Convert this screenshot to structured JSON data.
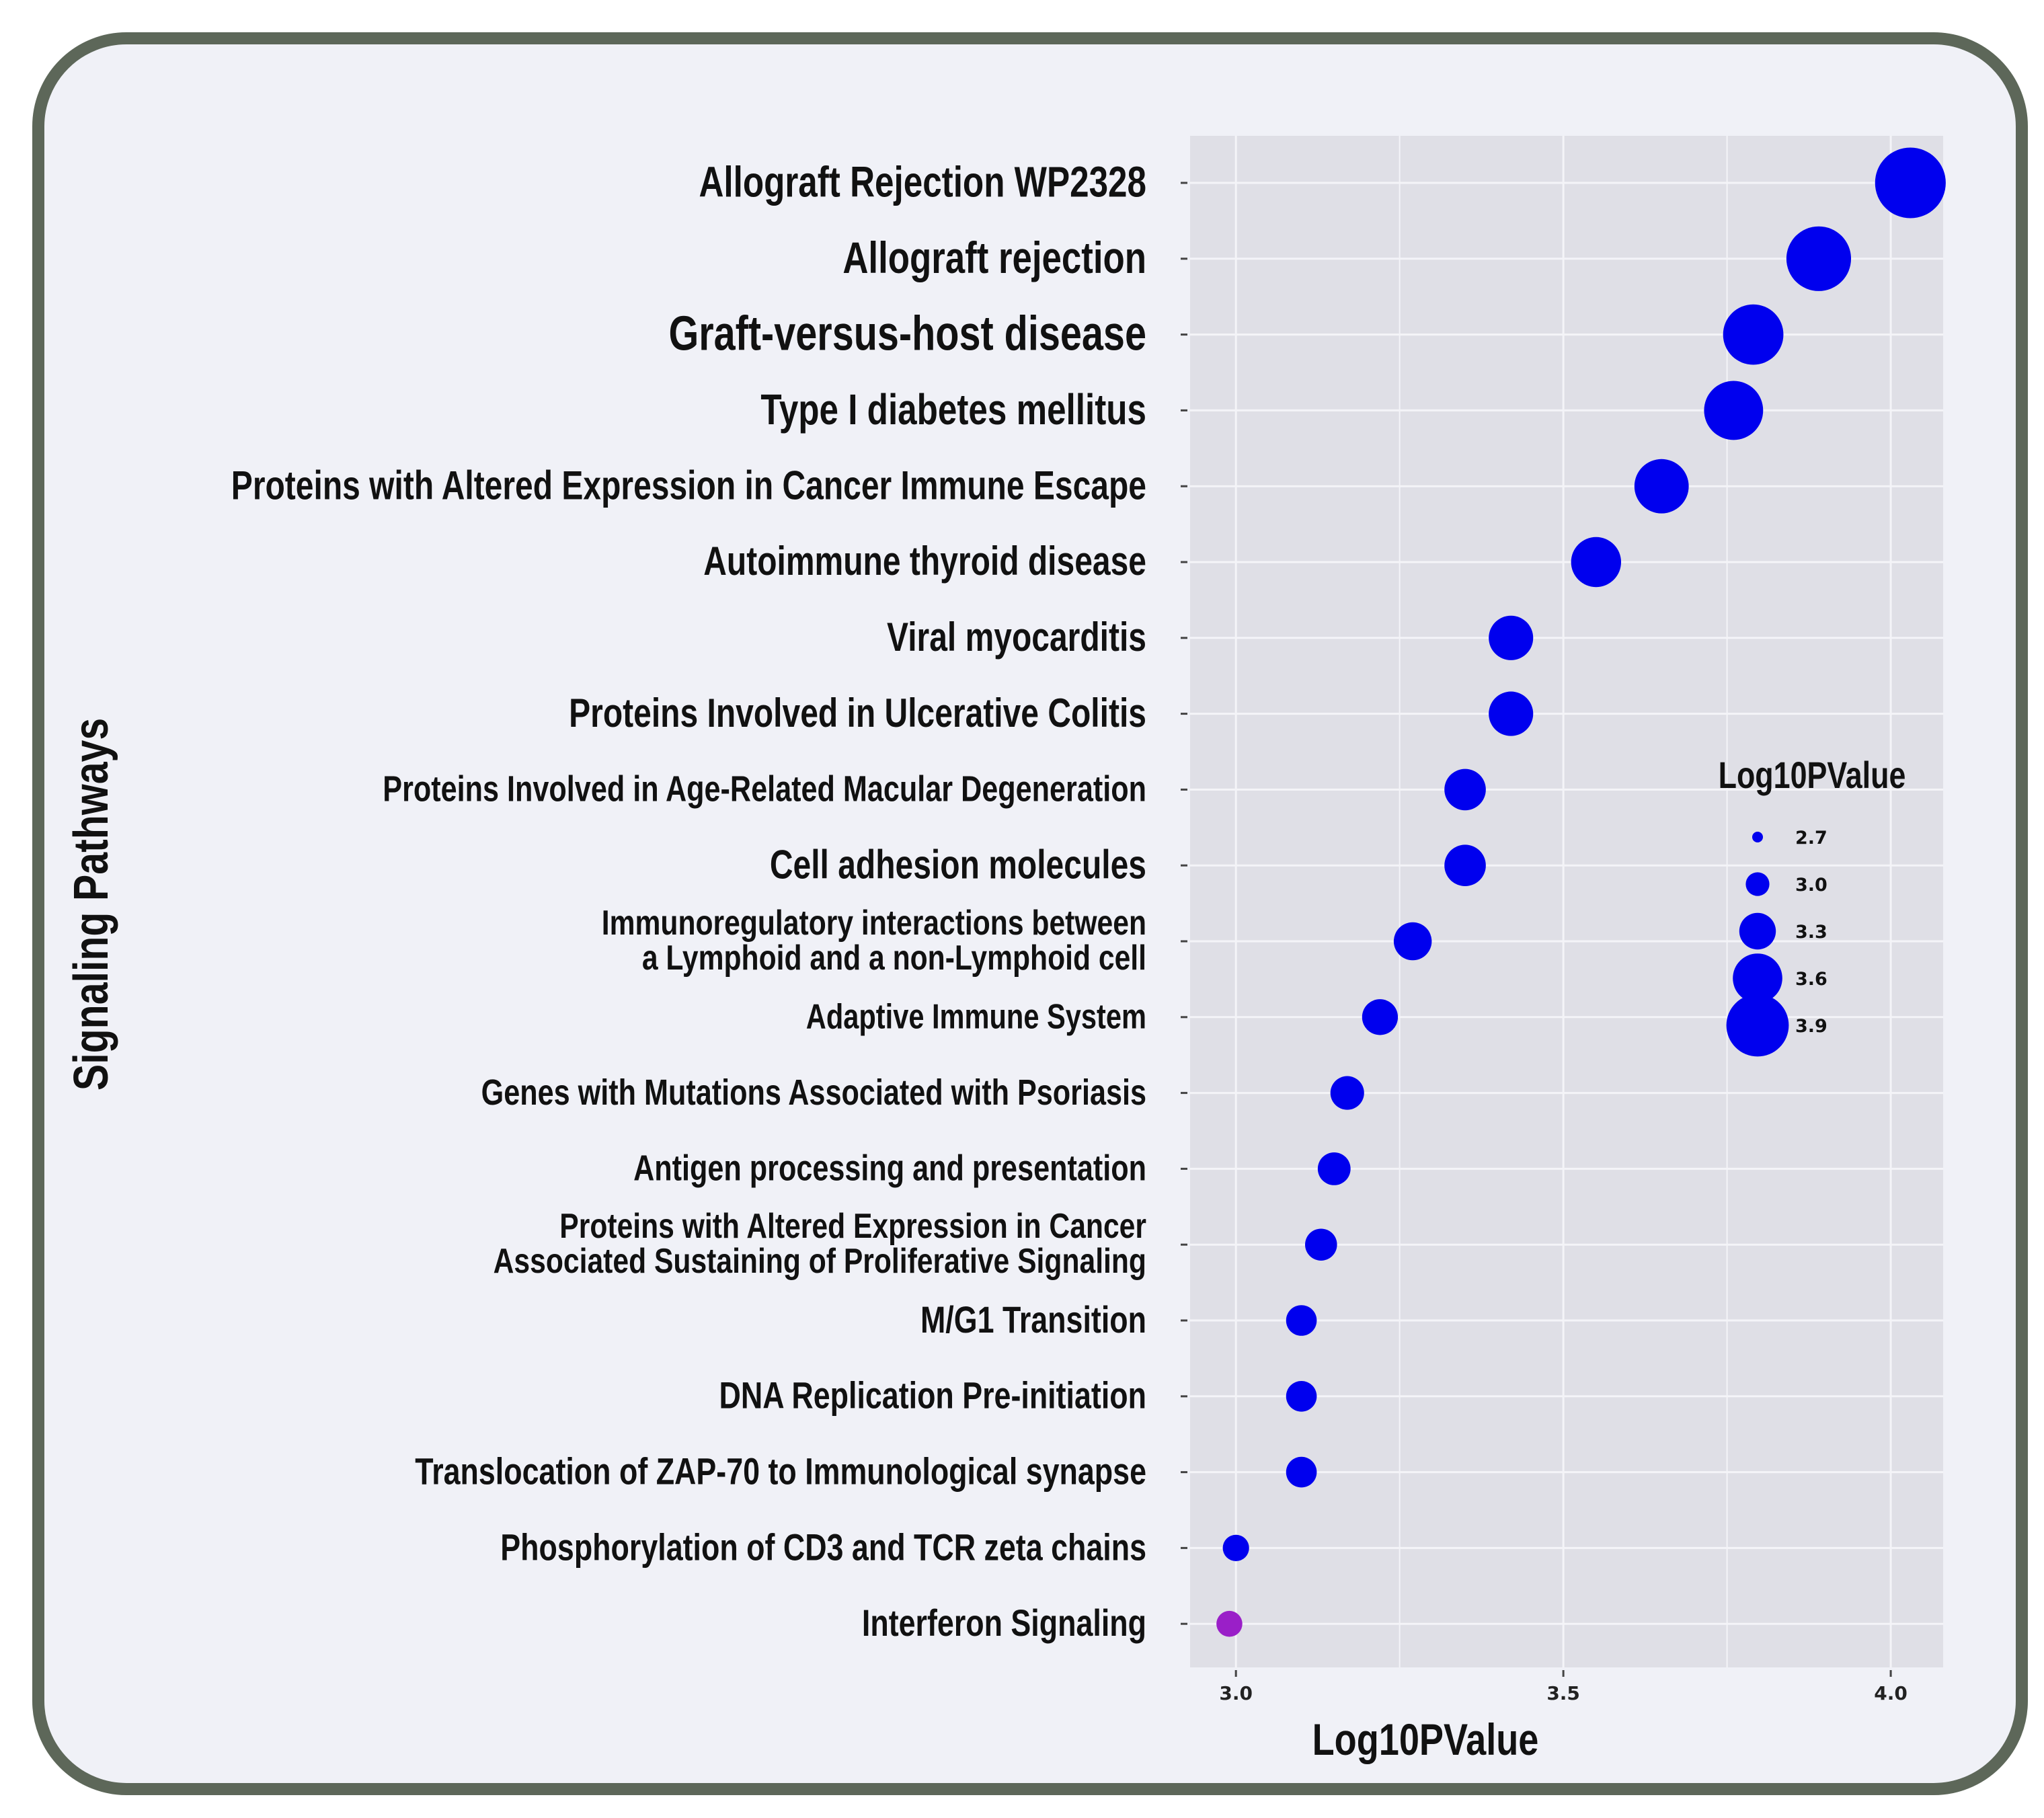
{
  "chart_data": {
    "type": "scatter",
    "subtype": "bubble",
    "xlabel": "Log10PValue",
    "ylabel": "Signaling Pathways",
    "xlim": [
      2.93,
      4.08
    ],
    "xticks": [
      3.0,
      3.5,
      4.0
    ],
    "xtick_labels": [
      "3.0",
      "3.5",
      "4.0"
    ],
    "grid": true,
    "legend": {
      "title": "Log10PValue",
      "position": "right",
      "entries": [
        {
          "label": "2.7",
          "value": 2.7
        },
        {
          "label": "3.0",
          "value": 3.0
        },
        {
          "label": "3.3",
          "value": 3.3
        },
        {
          "label": "3.6",
          "value": 3.6
        },
        {
          "label": "3.9",
          "value": 3.9
        }
      ]
    },
    "points": [
      {
        "label": [
          "Allograft Rejection WP2328"
        ],
        "x": 4.03,
        "color": "#0000ee"
      },
      {
        "label": [
          "Allograft rejection"
        ],
        "x": 3.89,
        "color": "#0000ee"
      },
      {
        "label": [
          "Graft-versus-host disease"
        ],
        "x": 3.79,
        "color": "#0000ee"
      },
      {
        "label": [
          "Type I diabetes mellitus"
        ],
        "x": 3.76,
        "color": "#0000ee"
      },
      {
        "label": [
          "Proteins with Altered Expression in Cancer Immune Escape"
        ],
        "x": 3.65,
        "color": "#0000ee"
      },
      {
        "label": [
          "Autoimmune thyroid disease"
        ],
        "x": 3.55,
        "color": "#0000ee"
      },
      {
        "label": [
          "Viral myocarditis"
        ],
        "x": 3.42,
        "color": "#0000ee"
      },
      {
        "label": [
          "Proteins Involved in Ulcerative Colitis"
        ],
        "x": 3.42,
        "color": "#0000ee"
      },
      {
        "label": [
          "Proteins Involved in Age-Related Macular Degeneration"
        ],
        "x": 3.35,
        "color": "#0000ee"
      },
      {
        "label": [
          "Cell adhesion molecules"
        ],
        "x": 3.35,
        "color": "#0000ee"
      },
      {
        "label": [
          "Immunoregulatory interactions between",
          "a Lymphoid and a non-Lymphoid cell"
        ],
        "x": 3.27,
        "color": "#0000ee"
      },
      {
        "label": [
          "Adaptive Immune System"
        ],
        "x": 3.22,
        "color": "#0000ee"
      },
      {
        "label": [
          "Genes with Mutations Associated with Psoriasis"
        ],
        "x": 3.17,
        "color": "#0000ee"
      },
      {
        "label": [
          "Antigen processing and presentation"
        ],
        "x": 3.15,
        "color": "#0000ee"
      },
      {
        "label": [
          "Proteins with Altered Expression in Cancer",
          "Associated Sustaining of Proliferative Signaling"
        ],
        "x": 3.13,
        "color": "#0000ee"
      },
      {
        "label": [
          "M/G1 Transition"
        ],
        "x": 3.1,
        "color": "#0000ee"
      },
      {
        "label": [
          "DNA Replication Pre-initiation"
        ],
        "x": 3.1,
        "color": "#0000ee"
      },
      {
        "label": [
          "Translocation of ZAP-70 to Immunological synapse"
        ],
        "x": 3.1,
        "color": "#0000ee"
      },
      {
        "label": [
          "Phosphorylation of CD3 and TCR zeta chains"
        ],
        "x": 3.0,
        "color": "#0000ee"
      },
      {
        "label": [
          "Interferon Signaling"
        ],
        "x": 2.99,
        "color": "#9a1fc8"
      }
    ]
  }
}
